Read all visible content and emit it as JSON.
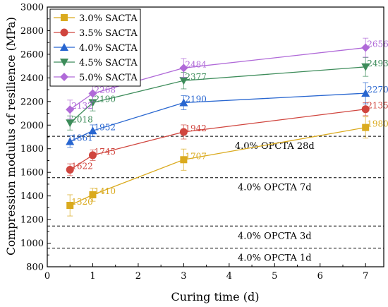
{
  "chart_data": {
    "type": "line",
    "xlabel": "Curing time (d)",
    "ylabel": "Compression modulus of resilience (MPa)",
    "xlim": [
      0,
      7.4
    ],
    "ylim": [
      800,
      3000
    ],
    "x_ticks": [
      0,
      1,
      2,
      3,
      4,
      5,
      6,
      7
    ],
    "y_ticks": [
      800,
      1000,
      1200,
      1400,
      1600,
      1800,
      2000,
      2200,
      2400,
      2600,
      2800,
      3000
    ],
    "legend_position": "top-left",
    "x": [
      0.5,
      1,
      3,
      7
    ],
    "series": [
      {
        "name": "3.0% SACTA",
        "marker": "square",
        "color": "#DAAA1E",
        "values": [
          1320,
          1410,
          1707,
          1980
        ],
        "labels": [
          "1320",
          "1410",
          "1707",
          "1980"
        ],
        "error": [
          90,
          55,
          90,
          90
        ]
      },
      {
        "name": "3.5% SACTA",
        "marker": "circle",
        "color": "#D0453E",
        "values": [
          1622,
          1745,
          1942,
          2135
        ],
        "labels": [
          "1622",
          "1745",
          "1942",
          "2135"
        ],
        "error": [
          50,
          45,
          60,
          55
        ]
      },
      {
        "name": "4.0% SACTA",
        "marker": "triangle-up",
        "color": "#2866D0",
        "values": [
          1861,
          1952,
          2190,
          2270
        ],
        "labels": [
          "1861",
          "1952",
          "2190",
          "2270"
        ],
        "error": [
          50,
          50,
          60,
          90
        ]
      },
      {
        "name": "4.5% SACTA",
        "marker": "triangle-down",
        "color": "#3D8C5A",
        "values": [
          2018,
          2190,
          2377,
          2493
        ],
        "labels": [
          "2018",
          "2190",
          "2377",
          "2493"
        ],
        "error": [
          60,
          70,
          70,
          80
        ]
      },
      {
        "name": "5.0% SACTA",
        "marker": "diamond",
        "color": "#B06AD8",
        "values": [
          2132,
          2268,
          2484,
          2656
        ],
        "labels": [
          "2132",
          "2268",
          "2484",
          "2656"
        ],
        "error": [
          80,
          70,
          80,
          80
        ]
      }
    ],
    "reference_lines": [
      {
        "label": "4.0% OPCTA 28d",
        "y": 1905
      },
      {
        "label": "4.0% OPCTA 7d",
        "y": 1555
      },
      {
        "label": "4.0% OPCTA 3d",
        "y": 1145
      },
      {
        "label": "4.0% OPCTA 1d",
        "y": 958
      }
    ]
  }
}
